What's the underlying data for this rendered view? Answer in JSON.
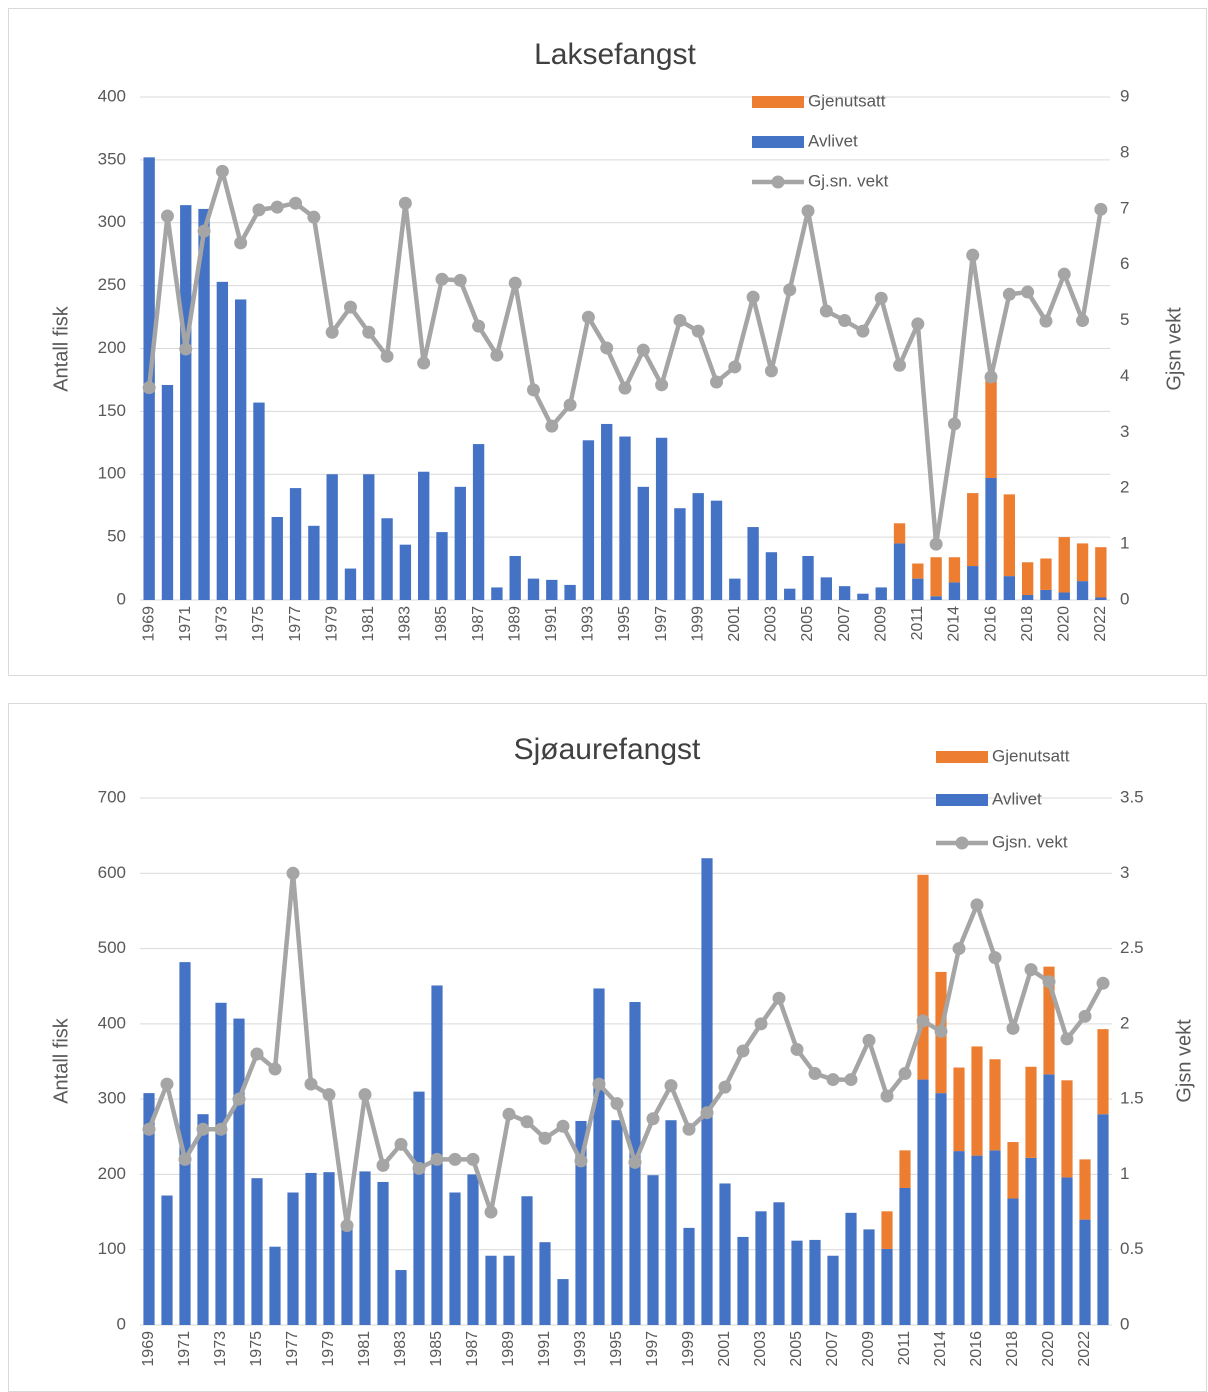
{
  "chart_data": [
    {
      "type": "bar",
      "stacked": true,
      "title": "Laksefangst",
      "ylabel": "Antall fisk",
      "y2label": "Gjsn vekt",
      "categories": [
        "1969",
        null,
        "1971",
        null,
        "1973",
        null,
        "1975",
        null,
        "1977",
        null,
        "1979",
        null,
        "1981",
        null,
        "1983",
        null,
        "1985",
        null,
        "1987",
        null,
        "1989",
        null,
        "1991",
        null,
        "1993",
        null,
        "1995",
        null,
        "1997",
        null,
        "1999",
        null,
        "2001",
        null,
        "2003",
        null,
        "2005",
        null,
        "2007",
        null,
        "2009",
        null,
        "2011",
        null,
        "2014",
        null,
        "2016",
        null,
        "2018",
        null,
        "2020",
        null,
        "2022"
      ],
      "series": [
        {
          "name": "Gjenutsatt",
          "type": "bar",
          "color": "#ed7d31",
          "values": [
            0,
            0,
            0,
            0,
            0,
            0,
            0,
            0,
            0,
            0,
            0,
            0,
            0,
            0,
            0,
            0,
            0,
            0,
            0,
            0,
            0,
            0,
            0,
            0,
            0,
            0,
            0,
            0,
            0,
            0,
            0,
            0,
            0,
            0,
            0,
            0,
            0,
            0,
            0,
            0,
            0,
            16,
            12,
            31,
            20,
            58,
            81,
            65,
            26,
            25,
            44,
            30,
            40
          ]
        },
        {
          "name": "Avlivet",
          "type": "bar",
          "color": "#4472c4",
          "values": [
            352,
            171,
            314,
            311,
            253,
            239,
            157,
            66,
            89,
            59,
            100,
            25,
            100,
            65,
            44,
            102,
            54,
            90,
            124,
            10,
            35,
            17,
            16,
            12,
            127,
            140,
            130,
            90,
            129,
            73,
            85,
            79,
            17,
            58,
            38,
            9,
            35,
            18,
            11,
            5,
            10,
            45,
            17,
            3,
            14,
            27,
            97,
            19,
            4,
            8,
            6,
            15,
            2
          ]
        },
        {
          "name": "Gj.sn. vekt",
          "type": "line",
          "axis": "y2",
          "color": "#a5a5a5",
          "values": [
            3.8,
            6.87,
            4.49,
            6.6,
            7.67,
            6.39,
            6.98,
            7.03,
            7.1,
            6.85,
            4.79,
            5.24,
            4.79,
            4.36,
            7.1,
            4.24,
            5.74,
            5.72,
            4.9,
            4.38,
            5.67,
            3.76,
            3.11,
            3.49,
            5.06,
            4.51,
            3.79,
            4.47,
            3.85,
            5.0,
            4.81,
            3.9,
            4.17,
            5.42,
            4.1,
            5.55,
            6.96,
            5.17,
            5.0,
            4.81,
            5.4,
            4.2,
            4.94,
            1.0,
            3.15,
            6.17,
            3.99,
            5.47,
            5.51,
            4.99,
            5.83,
            5.0,
            6.99
          ]
        }
      ],
      "ylim": [
        0,
        400
      ],
      "yticks": [
        0,
        50,
        100,
        150,
        200,
        250,
        300,
        350,
        400
      ],
      "y2lim": [
        0,
        9
      ],
      "y2ticks": [
        0,
        1,
        2,
        3,
        4,
        5,
        6,
        7,
        8,
        9
      ],
      "grid": true,
      "legend": "top-right"
    },
    {
      "type": "bar",
      "stacked": true,
      "title": "Sjøaurefangst",
      "ylabel": "Antall fisk",
      "y2label": "Gjsn vekt",
      "categories": [
        "1969",
        null,
        "1971",
        null,
        "1973",
        null,
        "1975",
        null,
        "1977",
        null,
        "1979",
        null,
        "1981",
        null,
        "1983",
        null,
        "1985",
        null,
        "1987",
        null,
        "1989",
        null,
        "1991",
        null,
        "1993",
        null,
        "1995",
        null,
        "1997",
        null,
        "1999",
        null,
        "2001",
        null,
        "2003",
        null,
        "2005",
        null,
        "2007",
        null,
        "2009",
        null,
        "2011",
        null,
        "2014",
        null,
        "2016",
        null,
        "2018",
        null,
        "2020",
        null,
        "2022",
        null
      ],
      "series": [
        {
          "name": "Gjenutsatt",
          "type": "bar",
          "color": "#ed7d31",
          "values": [
            0,
            0,
            0,
            0,
            0,
            0,
            0,
            0,
            0,
            0,
            0,
            0,
            0,
            0,
            0,
            0,
            0,
            0,
            0,
            0,
            0,
            0,
            0,
            0,
            0,
            0,
            0,
            0,
            0,
            0,
            0,
            0,
            0,
            0,
            0,
            0,
            0,
            0,
            0,
            0,
            0,
            50,
            50,
            272,
            161,
            111,
            145,
            121,
            75,
            121,
            143,
            129,
            80,
            113
          ]
        },
        {
          "name": "Avlivet",
          "type": "bar",
          "color": "#4472c4",
          "values": [
            308,
            172,
            482,
            280,
            428,
            407,
            195,
            104,
            176,
            202,
            203,
            130,
            204,
            190,
            73,
            310,
            451,
            176,
            200,
            92,
            92,
            171,
            110,
            61,
            271,
            447,
            272,
            429,
            199,
            272,
            129,
            620,
            188,
            117,
            151,
            163,
            112,
            113,
            92,
            149,
            127,
            101,
            182,
            326,
            308,
            231,
            225,
            232,
            168,
            222,
            333,
            196,
            140,
            280
          ]
        },
        {
          "name": "Gjsn. vekt",
          "type": "line",
          "axis": "y2",
          "color": "#a5a5a5",
          "values": [
            1.3,
            1.6,
            1.1,
            1.3,
            1.3,
            1.5,
            1.8,
            1.7,
            3.0,
            1.6,
            1.53,
            0.66,
            1.53,
            1.06,
            1.2,
            1.04,
            1.1,
            1.1,
            1.1,
            0.75,
            1.4,
            1.35,
            1.24,
            1.32,
            1.09,
            1.6,
            1.47,
            1.08,
            1.37,
            1.59,
            1.3,
            1.41,
            1.58,
            1.82,
            2.0,
            2.17,
            1.83,
            1.67,
            1.63,
            1.63,
            1.89,
            1.52,
            1.67,
            2.02,
            1.95,
            2.5,
            2.79,
            2.44,
            1.97,
            2.36,
            2.28,
            1.9,
            2.05,
            2.27
          ]
        }
      ],
      "ylim": [
        0,
        700
      ],
      "yticks": [
        0,
        100,
        200,
        300,
        400,
        500,
        600,
        700
      ],
      "y2lim": [
        0,
        3.5
      ],
      "y2ticks": [
        0,
        0.5,
        1,
        1.5,
        2,
        2.5,
        3,
        3.5
      ],
      "grid": true,
      "legend": "top-right"
    }
  ]
}
